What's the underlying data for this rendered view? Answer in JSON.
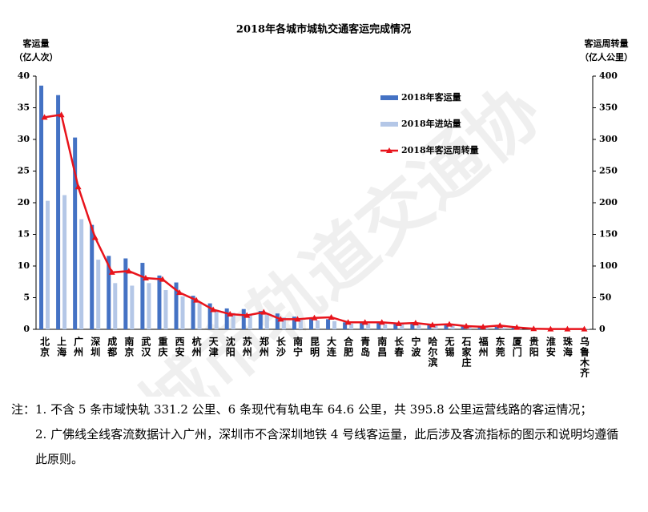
{
  "chart_data": {
    "type": "bar-line",
    "title": "2018年各城市城轨交通客运完成情况",
    "y_label": [
      "客运量",
      "（亿人次）"
    ],
    "y2_label": [
      "客运周转量",
      "（亿人公里）"
    ],
    "categories": [
      "北京",
      "上海",
      "广州",
      "深圳",
      "成都",
      "南京",
      "武汉",
      "重庆",
      "西安",
      "杭州",
      "天津",
      "沈阳",
      "苏州",
      "郑州",
      "长沙",
      "南宁",
      "昆明",
      "大连",
      "合肥",
      "青岛",
      "南昌",
      "长春",
      "宁波",
      "哈尔滨",
      "无锡",
      "石家庄",
      "福州",
      "东莞",
      "厦门",
      "贵阳",
      "淮安",
      "珠海",
      "乌鲁木齐"
    ],
    "series": [
      {
        "name": "2018年客运量",
        "color": "#4472c4",
        "kind": "bar",
        "values": [
          38.5,
          37.0,
          30.3,
          16.5,
          11.6,
          11.2,
          10.5,
          8.5,
          7.4,
          5.3,
          4.1,
          3.3,
          3.2,
          2.9,
          2.5,
          2.0,
          1.7,
          1.6,
          1.1,
          1.1,
          1.0,
          0.9,
          0.9,
          0.8,
          0.8,
          0.7,
          0.4,
          0.4,
          0.3,
          0.2,
          0.1,
          0.05,
          0.05
        ]
      },
      {
        "name": "2018年进站量",
        "color": "#b4c7e7",
        "kind": "bar",
        "values": [
          20.3,
          21.2,
          17.4,
          11.0,
          7.3,
          6.9,
          7.3,
          6.2,
          5.2,
          4.2,
          3.1,
          2.6,
          2.4,
          2.3,
          1.9,
          1.5,
          1.4,
          1.3,
          0.9,
          0.9,
          0.8,
          0.8,
          0.7,
          0.7,
          0.6,
          0.6,
          0.3,
          0.3,
          0.3,
          0.2,
          0.1,
          0.05,
          0.05
        ]
      },
      {
        "name": "2018年客运周转量",
        "color": "#e8141c",
        "kind": "line",
        "axis": "y2",
        "values": [
          335,
          339,
          225,
          145,
          90,
          92,
          81,
          79,
          58,
          46,
          31,
          24,
          22,
          27,
          16,
          16,
          18,
          19,
          11,
          11,
          11,
          9,
          10,
          7,
          8,
          5,
          4,
          6,
          3,
          1,
          0.5,
          0.5,
          0.5
        ]
      }
    ],
    "ylim": [
      0,
      40
    ],
    "yticks": [
      0,
      5,
      10,
      15,
      20,
      25,
      30,
      35,
      40
    ],
    "y2lim": [
      0,
      400
    ],
    "y2ticks": [
      0,
      50,
      100,
      150,
      200,
      250,
      300,
      350,
      400
    ],
    "legend": "upper-right",
    "watermark": "城市轨道交通协"
  },
  "notes": {
    "prefix": "注：",
    "items": [
      "1. 不含 5 条市域快轨 331.2 公里、6 条现代有轨电车 64.6 公里，共 395.8 公里运营线路的客运情况；",
      "2. 广佛线全线客流数据计入广州，深圳市不含深圳地铁 4 号线客运量，此后涉及客流指标的图示和说明均遵循此原则。"
    ]
  }
}
